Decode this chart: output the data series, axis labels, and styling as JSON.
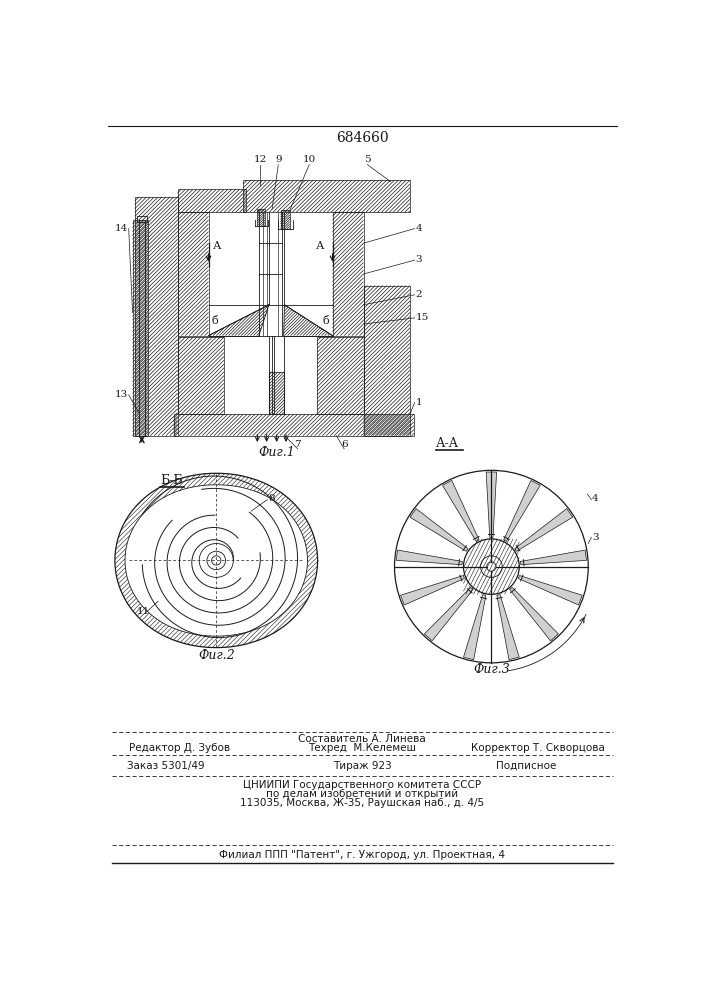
{
  "title": "684660",
  "background": "#ffffff",
  "line_color": "#1a1a1a",
  "fig1_label": "Фиг.1",
  "fig2_label": "Фиг.2",
  "fig3_label": "Фиг.3",
  "fig2_section": "Б-Б",
  "fig3_section": "А-А",
  "footer_fontsize": 7.5,
  "title_fontsize": 10
}
